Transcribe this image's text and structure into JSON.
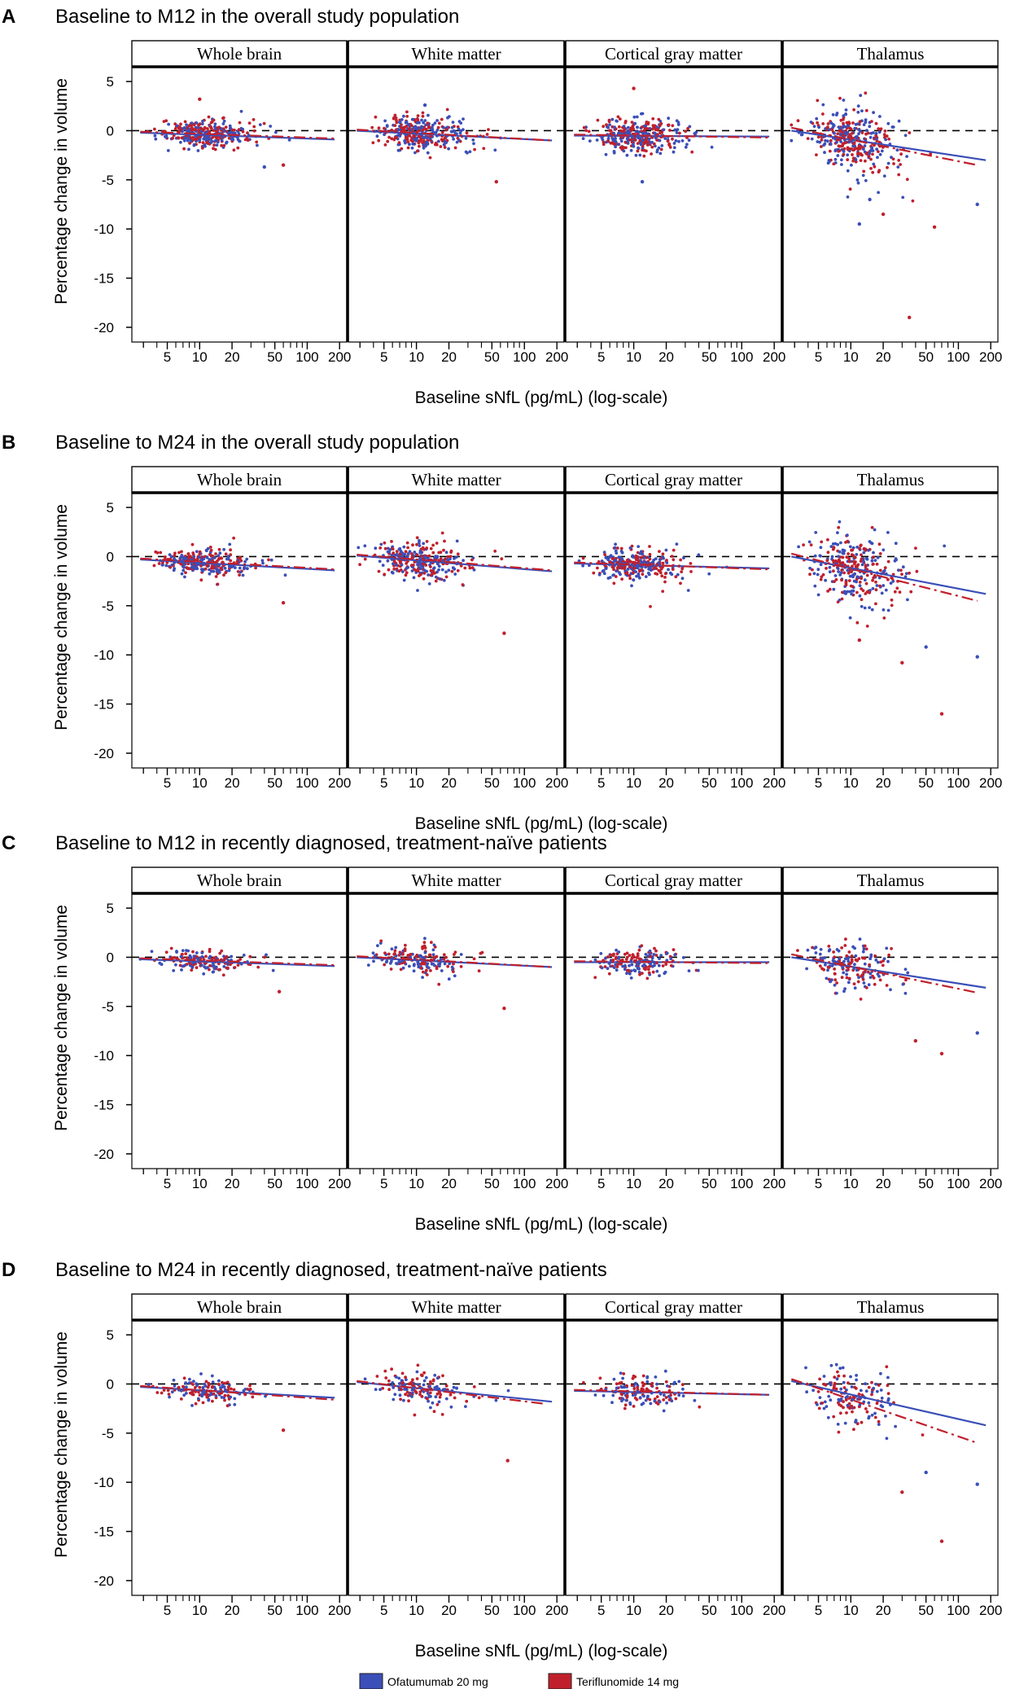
{
  "figure": {
    "shared": {
      "facets": [
        "Whole brain",
        "White matter",
        "Cortical gray matter",
        "Thalamus"
      ],
      "ylabel": "Percentage change in volume",
      "xlabel": "Baseline sNfL (pg/mL) (log-scale)",
      "y_ticks": [
        5,
        0,
        -5,
        -10,
        -15,
        -20
      ],
      "y_tick_labels": [
        "5",
        "0",
        "-5",
        "-10",
        "-15",
        "-20"
      ],
      "x_ticks": [
        5,
        10,
        20,
        50,
        100,
        200
      ],
      "x_tick_labels": [
        "5",
        "10",
        "20",
        "50",
        "100",
        "200"
      ],
      "x_minor_ticks": [
        3,
        4,
        6,
        7,
        8,
        9,
        30,
        40,
        60,
        70,
        80,
        90
      ],
      "reference_line_y": 0
    },
    "legend": {
      "items": [
        {
          "label": "Ofatumumab 20 mg",
          "color": "#3a4fb8"
        },
        {
          "label": "Teriflunomide 14 mg",
          "color": "#c0202c"
        }
      ]
    }
  },
  "chart_data": [
    {
      "type": "scatter",
      "panel": "A",
      "title": "Baseline to M12 in the overall study population",
      "xlabel": "Baseline sNfL (pg/mL) (log-scale)",
      "ylabel": "Percentage change in volume",
      "xlim": [
        2.6,
        210
      ],
      "ylim": [
        -21.5,
        6.5
      ],
      "x_scale": "log",
      "facets": [
        {
          "name": "Whole brain",
          "ofatumumab_fit": [
            [
              2.8,
              -0.2
            ],
            [
              180,
              -0.9
            ]
          ],
          "teriflunomide_fit": [
            [
              2.8,
              -0.1
            ],
            [
              180,
              -0.8
            ]
          ],
          "spread": 0.8,
          "n_points": 320,
          "outliers": [
            [
              10,
              3.2
            ],
            [
              40,
              -3.7
            ],
            [
              60,
              -3.5
            ]
          ]
        },
        {
          "name": "White matter",
          "ofatumumab_fit": [
            [
              2.8,
              0.0
            ],
            [
              180,
              -1.0
            ]
          ],
          "teriflunomide_fit": [
            [
              2.8,
              0.1
            ],
            [
              180,
              -1.0
            ]
          ],
          "spread": 1.0,
          "n_points": 320,
          "outliers": [
            [
              55,
              -5.2
            ],
            [
              12,
              2.6
            ]
          ]
        },
        {
          "name": "Cortical gray matter",
          "ofatumumab_fit": [
            [
              2.8,
              -0.5
            ],
            [
              180,
              -0.6
            ]
          ],
          "teriflunomide_fit": [
            [
              2.8,
              -0.4
            ],
            [
              180,
              -0.7
            ]
          ],
          "spread": 1.0,
          "n_points": 320,
          "outliers": [
            [
              10,
              4.3
            ],
            [
              12,
              -5.2
            ]
          ]
        },
        {
          "name": "Thalamus",
          "ofatumumab_fit": [
            [
              2.8,
              0.0
            ],
            [
              180,
              -3.0
            ]
          ],
          "teriflunomide_fit": [
            [
              2.8,
              0.3
            ],
            [
              150,
              -3.5
            ]
          ],
          "spread": 1.8,
          "n_points": 340,
          "outliers": [
            [
              35,
              -19.0
            ],
            [
              12,
              -9.5
            ],
            [
              60,
              -9.8
            ],
            [
              150,
              -7.5
            ],
            [
              20,
              -8.5
            ],
            [
              15,
              -7.0
            ]
          ]
        }
      ],
      "series": [
        {
          "name": "Ofatumumab 20 mg",
          "color": "#3a4fb8"
        },
        {
          "name": "Teriflunomide 14 mg",
          "color": "#c0202c"
        }
      ]
    },
    {
      "type": "scatter",
      "panel": "B",
      "title": "Baseline to M24 in the overall study population",
      "xlabel": "Baseline sNfL (pg/mL) (log-scale)",
      "ylabel": "Percentage change in volume",
      "xlim": [
        2.6,
        210
      ],
      "ylim": [
        -21.5,
        6.5
      ],
      "x_scale": "log",
      "facets": [
        {
          "name": "Whole brain",
          "ofatumumab_fit": [
            [
              2.8,
              -0.3
            ],
            [
              180,
              -1.4
            ]
          ],
          "teriflunomide_fit": [
            [
              2.8,
              -0.2
            ],
            [
              180,
              -1.3
            ]
          ],
          "spread": 0.8,
          "n_points": 280,
          "outliers": [
            [
              60,
              -4.7
            ]
          ]
        },
        {
          "name": "White matter",
          "ofatumumab_fit": [
            [
              2.8,
              0.1
            ],
            [
              180,
              -1.5
            ]
          ],
          "teriflunomide_fit": [
            [
              2.8,
              0.2
            ],
            [
              180,
              -1.4
            ]
          ],
          "spread": 1.1,
          "n_points": 280,
          "outliers": [
            [
              65,
              -7.8
            ]
          ]
        },
        {
          "name": "Cortical gray matter",
          "ofatumumab_fit": [
            [
              2.8,
              -0.7
            ],
            [
              180,
              -1.2
            ]
          ],
          "teriflunomide_fit": [
            [
              2.8,
              -0.6
            ],
            [
              180,
              -1.3
            ]
          ],
          "spread": 1.0,
          "n_points": 280,
          "outliers": []
        },
        {
          "name": "Thalamus",
          "ofatumumab_fit": [
            [
              2.8,
              0.0
            ],
            [
              180,
              -3.8
            ]
          ],
          "teriflunomide_fit": [
            [
              2.8,
              0.3
            ],
            [
              150,
              -4.5
            ]
          ],
          "spread": 2.0,
          "n_points": 300,
          "outliers": [
            [
              70,
              -16.0
            ],
            [
              150,
              -10.2
            ],
            [
              30,
              -10.8
            ],
            [
              50,
              -9.2
            ],
            [
              12,
              -8.5
            ]
          ]
        }
      ],
      "series": [
        {
          "name": "Ofatumumab 20 mg",
          "color": "#3a4fb8"
        },
        {
          "name": "Teriflunomide 14 mg",
          "color": "#c0202c"
        }
      ]
    },
    {
      "type": "scatter",
      "panel": "C",
      "title": "Baseline to M12 in recently diagnosed, treatment-naïve patients",
      "xlabel": "Baseline sNfL (pg/mL) (log-scale)",
      "ylabel": "Percentage change in volume",
      "xlim": [
        2.6,
        210
      ],
      "ylim": [
        -21.5,
        6.5
      ],
      "x_scale": "log",
      "facets": [
        {
          "name": "Whole brain",
          "ofatumumab_fit": [
            [
              2.8,
              -0.2
            ],
            [
              180,
              -0.9
            ]
          ],
          "teriflunomide_fit": [
            [
              2.8,
              -0.1
            ],
            [
              180,
              -0.8
            ]
          ],
          "spread": 0.7,
          "n_points": 160,
          "outliers": [
            [
              55,
              -3.5
            ]
          ]
        },
        {
          "name": "White matter",
          "ofatumumab_fit": [
            [
              2.8,
              0.0
            ],
            [
              180,
              -1.0
            ]
          ],
          "teriflunomide_fit": [
            [
              2.8,
              0.1
            ],
            [
              180,
              -1.0
            ]
          ],
          "spread": 0.9,
          "n_points": 160,
          "outliers": [
            [
              65,
              -5.2
            ]
          ]
        },
        {
          "name": "Cortical gray matter",
          "ofatumumab_fit": [
            [
              2.8,
              -0.5
            ],
            [
              180,
              -0.5
            ]
          ],
          "teriflunomide_fit": [
            [
              2.8,
              -0.4
            ],
            [
              180,
              -0.6
            ]
          ],
          "spread": 0.9,
          "n_points": 160,
          "outliers": []
        },
        {
          "name": "Thalamus",
          "ofatumumab_fit": [
            [
              2.8,
              0.0
            ],
            [
              180,
              -3.1
            ]
          ],
          "teriflunomide_fit": [
            [
              2.8,
              0.3
            ],
            [
              150,
              -3.6
            ]
          ],
          "spread": 1.6,
          "n_points": 170,
          "outliers": [
            [
              70,
              -9.8
            ],
            [
              150,
              -7.7
            ],
            [
              40,
              -8.5
            ]
          ]
        }
      ],
      "series": [
        {
          "name": "Ofatumumab 20 mg",
          "color": "#3a4fb8"
        },
        {
          "name": "Teriflunomide 14 mg",
          "color": "#c0202c"
        }
      ]
    },
    {
      "type": "scatter",
      "panel": "D",
      "title": "Baseline to M24 in recently diagnosed, treatment-naïve patients",
      "xlabel": "Baseline sNfL (pg/mL) (log-scale)",
      "ylabel": "Percentage change in volume",
      "xlim": [
        2.6,
        210
      ],
      "ylim": [
        -21.5,
        6.5
      ],
      "x_scale": "log",
      "facets": [
        {
          "name": "Whole brain",
          "ofatumumab_fit": [
            [
              2.8,
              -0.3
            ],
            [
              180,
              -1.4
            ]
          ],
          "teriflunomide_fit": [
            [
              2.8,
              -0.2
            ],
            [
              180,
              -1.6
            ]
          ],
          "spread": 0.7,
          "n_points": 140,
          "outliers": [
            [
              60,
              -4.7
            ]
          ]
        },
        {
          "name": "White matter",
          "ofatumumab_fit": [
            [
              2.8,
              0.2
            ],
            [
              180,
              -1.8
            ]
          ],
          "teriflunomide_fit": [
            [
              2.8,
              0.3
            ],
            [
              150,
              -2.0
            ]
          ],
          "spread": 1.0,
          "n_points": 140,
          "outliers": [
            [
              70,
              -7.8
            ]
          ]
        },
        {
          "name": "Cortical gray matter",
          "ofatumumab_fit": [
            [
              2.8,
              -0.7
            ],
            [
              180,
              -1.1
            ]
          ],
          "teriflunomide_fit": [
            [
              2.8,
              -0.6
            ],
            [
              180,
              -1.1
            ]
          ],
          "spread": 0.9,
          "n_points": 140,
          "outliers": []
        },
        {
          "name": "Thalamus",
          "ofatumumab_fit": [
            [
              2.8,
              0.3
            ],
            [
              180,
              -4.2
            ]
          ],
          "teriflunomide_fit": [
            [
              2.8,
              0.5
            ],
            [
              150,
              -6.0
            ]
          ],
          "spread": 1.8,
          "n_points": 150,
          "outliers": [
            [
              70,
              -16.0
            ],
            [
              150,
              -10.2
            ],
            [
              30,
              -11.0
            ],
            [
              50,
              -9.0
            ]
          ]
        }
      ],
      "series": [
        {
          "name": "Ofatumumab 20 mg",
          "color": "#3a4fb8"
        },
        {
          "name": "Teriflunomide 14 mg",
          "color": "#c0202c"
        }
      ]
    }
  ]
}
